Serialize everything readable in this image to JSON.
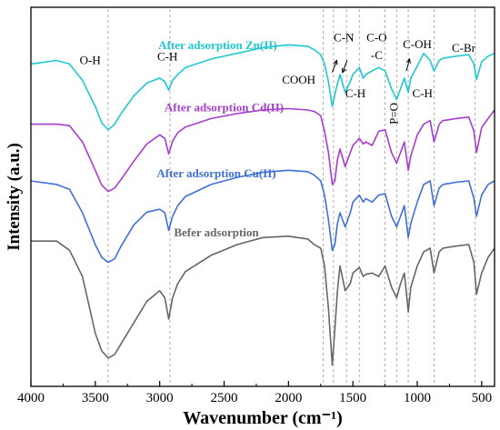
{
  "chart_data": {
    "type": "line",
    "title": "",
    "xlabel": "Wavenumber (cm⁻¹)",
    "ylabel": "Intensity (a.u.)",
    "xlim": [
      4000,
      400
    ],
    "x_reversed": true,
    "y_tick_labels": false,
    "xticks": [
      4000,
      3500,
      3000,
      2500,
      2000,
      1500,
      1000,
      500
    ],
    "grid": false,
    "reference_lines": [
      3400,
      2920,
      1730,
      1650,
      1550,
      1450,
      1250,
      1160,
      1070,
      870,
      550
    ],
    "annotations": [
      {
        "text": "O-H",
        "x": 3540,
        "y": 4.55
      },
      {
        "text": "C-H",
        "x": 2940,
        "y": 4.6
      },
      {
        "text": "COOH",
        "x": 1920,
        "y": 4.27
      },
      {
        "text": "C-N",
        "x": 1570,
        "y": 4.87
      },
      {
        "text": "C-H",
        "x": 1480,
        "y": 4.08
      },
      {
        "text": "C-O",
        "x": 1315,
        "y": 4.87
      },
      {
        "text": "-C",
        "x": 1315,
        "y": 4.62
      },
      {
        "text": "P=O",
        "x": 1150,
        "y": 3.85,
        "rotated": true
      },
      {
        "text": "C-OH",
        "x": 1000,
        "y": 4.77
      },
      {
        "text": "C-H",
        "x": 960,
        "y": 4.08
      },
      {
        "text": "C-Br",
        "x": 640,
        "y": 4.72
      }
    ],
    "arrows": [
      {
        "from": [
          1660,
          4.43
        ],
        "to": [
          1625,
          4.6
        ]
      },
      {
        "from": [
          1545,
          4.6
        ],
        "to": [
          1580,
          4.43
        ]
      },
      {
        "from": [
          1085,
          4.45
        ],
        "to": [
          1060,
          4.62
        ]
      }
    ],
    "series": [
      {
        "name": "After adsorption Zn(II)",
        "color": "#1fc8cf",
        "label_pos": [
          2550,
          4.76
        ],
        "x": [
          4000,
          3800,
          3700,
          3600,
          3500,
          3450,
          3400,
          3350,
          3300,
          3200,
          3100,
          3000,
          2960,
          2930,
          2900,
          2860,
          2800,
          2600,
          2400,
          2200,
          2000,
          1850,
          1800,
          1750,
          1720,
          1690,
          1660,
          1630,
          1600,
          1560,
          1520,
          1500,
          1450,
          1420,
          1400,
          1350,
          1300,
          1250,
          1200,
          1160,
          1130,
          1100,
          1070,
          1050,
          1000,
          950,
          900,
          870,
          830,
          800,
          700,
          600,
          560,
          540,
          500,
          450,
          400
        ],
        "y": [
          4.55,
          4.6,
          4.55,
          4.32,
          3.95,
          3.72,
          3.62,
          3.7,
          3.85,
          4.1,
          4.28,
          4.35,
          4.3,
          4.18,
          4.32,
          4.4,
          4.5,
          4.62,
          4.7,
          4.78,
          4.82,
          4.8,
          4.75,
          4.68,
          4.55,
          4.3,
          3.95,
          4.2,
          4.4,
          4.15,
          4.3,
          4.4,
          4.5,
          4.35,
          4.4,
          4.45,
          4.5,
          4.45,
          4.2,
          4.05,
          4.2,
          4.35,
          4.15,
          4.35,
          4.52,
          4.7,
          4.6,
          4.45,
          4.6,
          4.63,
          4.66,
          4.68,
          4.55,
          4.33,
          4.58,
          4.66,
          4.7
        ]
      },
      {
        "name": "After adsorption Cd(II)",
        "color": "#a63cd0",
        "label_pos": [
          2500,
          3.88
        ],
        "x": [
          4000,
          3800,
          3700,
          3600,
          3500,
          3450,
          3400,
          3350,
          3300,
          3200,
          3100,
          3000,
          2960,
          2930,
          2900,
          2860,
          2800,
          2600,
          2400,
          2200,
          2000,
          1850,
          1800,
          1750,
          1720,
          1690,
          1660,
          1640,
          1620,
          1600,
          1560,
          1520,
          1500,
          1450,
          1420,
          1400,
          1350,
          1300,
          1250,
          1200,
          1160,
          1130,
          1100,
          1070,
          1050,
          1000,
          950,
          900,
          870,
          830,
          800,
          700,
          600,
          560,
          540,
          500,
          450,
          400
        ],
        "y": [
          3.7,
          3.7,
          3.68,
          3.45,
          3.05,
          2.84,
          2.75,
          2.8,
          2.92,
          3.18,
          3.42,
          3.55,
          3.5,
          3.28,
          3.46,
          3.58,
          3.66,
          3.78,
          3.85,
          3.9,
          3.92,
          3.9,
          3.88,
          3.82,
          3.6,
          3.3,
          2.85,
          2.9,
          3.2,
          3.35,
          3.1,
          3.3,
          3.4,
          3.5,
          3.42,
          3.45,
          3.4,
          3.6,
          3.62,
          3.3,
          3.15,
          3.3,
          3.45,
          3.05,
          3.25,
          3.55,
          3.7,
          3.75,
          3.45,
          3.7,
          3.75,
          3.78,
          3.8,
          3.6,
          3.3,
          3.65,
          3.78,
          3.9
        ]
      },
      {
        "name": "After adsorption Cu(II)",
        "color": "#3f6fd8",
        "label_pos": [
          2560,
          2.95
        ],
        "x": [
          4000,
          3800,
          3700,
          3600,
          3500,
          3450,
          3400,
          3350,
          3300,
          3200,
          3100,
          3000,
          2960,
          2930,
          2900,
          2860,
          2800,
          2600,
          2400,
          2200,
          2000,
          1850,
          1800,
          1750,
          1720,
          1690,
          1660,
          1640,
          1620,
          1600,
          1560,
          1520,
          1500,
          1450,
          1420,
          1400,
          1350,
          1300,
          1250,
          1200,
          1160,
          1130,
          1100,
          1070,
          1050,
          1000,
          950,
          900,
          870,
          830,
          800,
          700,
          600,
          560,
          540,
          500,
          450,
          400
        ],
        "y": [
          2.9,
          2.85,
          2.78,
          2.45,
          2.0,
          1.82,
          1.75,
          1.8,
          1.98,
          2.28,
          2.46,
          2.5,
          2.45,
          2.2,
          2.4,
          2.55,
          2.68,
          2.85,
          2.95,
          3.02,
          3.05,
          3.03,
          2.98,
          2.9,
          2.7,
          2.35,
          1.92,
          2.0,
          2.3,
          2.45,
          2.25,
          2.45,
          2.6,
          2.7,
          2.6,
          2.65,
          2.6,
          2.7,
          2.72,
          2.4,
          2.25,
          2.4,
          2.55,
          2.1,
          2.3,
          2.6,
          2.85,
          2.9,
          2.55,
          2.8,
          2.85,
          2.88,
          2.9,
          2.65,
          2.4,
          2.7,
          2.85,
          2.9
        ]
      },
      {
        "name": "Befer adsorption",
        "color": "#666666",
        "label_pos": [
          2560,
          2.12
        ],
        "x": [
          4000,
          3800,
          3700,
          3600,
          3550,
          3500,
          3450,
          3400,
          3350,
          3300,
          3200,
          3100,
          3000,
          2960,
          2930,
          2900,
          2860,
          2800,
          2600,
          2400,
          2200,
          2000,
          1850,
          1800,
          1750,
          1720,
          1690,
          1660,
          1640,
          1620,
          1600,
          1560,
          1520,
          1500,
          1450,
          1420,
          1400,
          1350,
          1300,
          1250,
          1200,
          1160,
          1130,
          1100,
          1070,
          1050,
          1000,
          950,
          900,
          870,
          830,
          800,
          700,
          600,
          560,
          540,
          500,
          450,
          400
        ],
        "y": [
          2.05,
          2.05,
          1.92,
          1.55,
          1.15,
          0.75,
          0.5,
          0.4,
          0.45,
          0.6,
          0.9,
          1.2,
          1.35,
          1.25,
          0.95,
          1.25,
          1.45,
          1.62,
          1.85,
          2.0,
          2.1,
          2.12,
          2.08,
          2.0,
          1.95,
          1.7,
          1.1,
          0.3,
          0.8,
          1.35,
          1.7,
          1.35,
          1.45,
          1.6,
          1.68,
          1.55,
          1.58,
          1.6,
          1.55,
          1.7,
          1.4,
          1.25,
          1.45,
          1.6,
          1.05,
          1.4,
          1.7,
          1.9,
          1.95,
          1.6,
          1.9,
          1.95,
          1.98,
          2.0,
          1.75,
          1.3,
          1.6,
          1.82,
          1.95
        ]
      }
    ]
  }
}
